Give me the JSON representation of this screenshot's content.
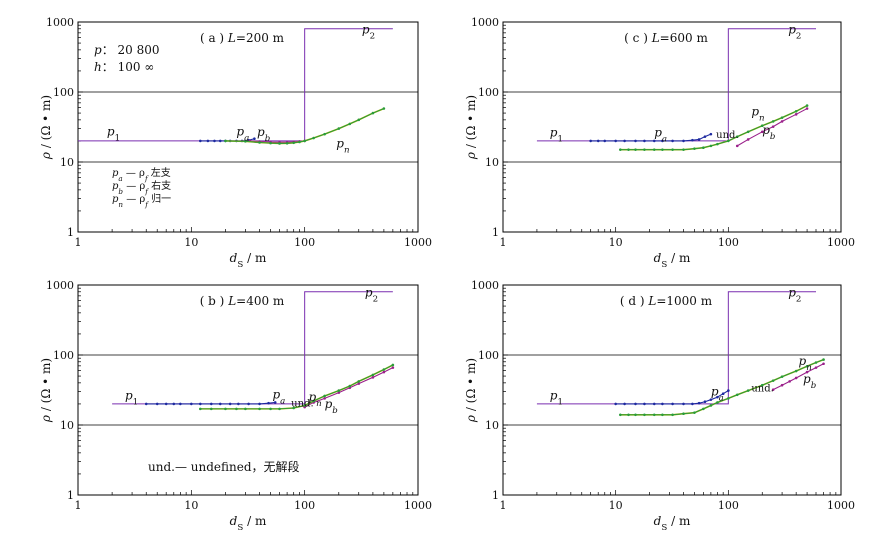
{
  "figure": {
    "und_note": "und.— undefined，无解段",
    "params": {
      "p_label": "p：",
      "p_values": "20  800",
      "h_label": "h：",
      "h_values": "100  ∞"
    },
    "legend": [
      {
        "sym": "p",
        "sub": "a",
        "text": "— ρ",
        "text_sub": "f",
        "suffix": "左支"
      },
      {
        "sym": "p",
        "sub": "b",
        "text": "— ρ",
        "text_sub": "f",
        "suffix": "右支"
      },
      {
        "sym": "p",
        "sub": "n",
        "text": "— ρ",
        "text_sub": "f",
        "suffix": "归一"
      }
    ]
  },
  "colors": {
    "model": "#7a2fb0",
    "pa": "#1e2aa0",
    "pb": "#9a1f8a",
    "pn_green": "#2a9d3a",
    "pn_yellow": "#c9b400",
    "grid": "#000000"
  },
  "chart_data": [
    {
      "type": "line",
      "panel": "(a)",
      "title": "( a ) L=200 m",
      "xlabel": "d_S / m",
      "ylabel": "ρ / (Ω • m)",
      "xlim": [
        1,
        1000
      ],
      "ylim": [
        1,
        1000
      ],
      "xscale": "log",
      "yscale": "log",
      "xticks": [
        "1",
        "10",
        "100",
        "1000"
      ],
      "yticks": [
        "1",
        "10",
        "100",
        "1000"
      ],
      "series": [
        {
          "name": "model",
          "x": [
            1,
            100,
            100,
            600
          ],
          "y": [
            20,
            20,
            800,
            800
          ]
        },
        {
          "name": "p_a",
          "x": [
            12,
            14,
            16,
            18,
            20,
            22,
            25,
            28,
            32,
            36
          ],
          "y": [
            20,
            20,
            20,
            20,
            20,
            20,
            20,
            20,
            20.5,
            21.5
          ]
        },
        {
          "name": "p_b",
          "x": [
            33,
            40,
            50,
            60,
            70,
            80,
            90,
            100
          ],
          "y": [
            20,
            19.6,
            19.3,
            19.2,
            19.2,
            19.4,
            19.7,
            20
          ]
        },
        {
          "name": "p_n",
          "x": [
            20,
            30,
            40,
            50,
            60,
            70,
            80,
            90,
            100,
            120,
            150,
            200,
            250,
            300,
            400,
            500
          ],
          "y": [
            20,
            19.7,
            19,
            18.6,
            18.4,
            18.5,
            18.8,
            19.3,
            20,
            22,
            25,
            30,
            35,
            40,
            50,
            58
          ]
        }
      ],
      "labels": [
        "p1",
        "pa",
        "pb",
        "pn",
        "p2"
      ]
    },
    {
      "type": "line",
      "panel": "(b)",
      "title": "( b ) L=400 m",
      "xlabel": "d_S / m",
      "ylabel": "ρ / (Ω • m)",
      "xlim": [
        1,
        1000
      ],
      "ylim": [
        1,
        1000
      ],
      "xscale": "log",
      "yscale": "log",
      "xticks": [
        "1",
        "10",
        "100",
        "1000"
      ],
      "yticks": [
        "1",
        "10",
        "100",
        "1000"
      ],
      "series": [
        {
          "name": "model",
          "x": [
            2,
            100,
            100,
            600
          ],
          "y": [
            20,
            20,
            800,
            800
          ]
        },
        {
          "name": "p_a",
          "x": [
            4,
            5,
            6,
            7,
            8,
            10,
            12,
            15,
            18,
            22,
            26,
            32,
            40,
            48,
            55
          ],
          "y": [
            20,
            20,
            20,
            20,
            20,
            20,
            20,
            20,
            20,
            20,
            20,
            20,
            20,
            20.5,
            21
          ]
        },
        {
          "name": "p_b",
          "x": [
            100,
            120,
            150,
            200,
            250,
            300,
            400,
            500,
            600
          ],
          "y": [
            18,
            21,
            24,
            29,
            34,
            39,
            48,
            57,
            66
          ]
        },
        {
          "name": "p_n",
          "x": [
            12,
            15,
            20,
            25,
            30,
            40,
            50,
            60,
            80,
            100,
            120,
            150,
            200,
            250,
            300,
            400,
            500,
            600
          ],
          "y": [
            17,
            17,
            17,
            17,
            17,
            17,
            17,
            17,
            17.5,
            19,
            22,
            26,
            31,
            36,
            42,
            52,
            62,
            72
          ]
        }
      ],
      "labels": [
        "p1",
        "pa",
        "und.",
        "pn",
        "pb",
        "p2"
      ]
    },
    {
      "type": "line",
      "panel": "(c)",
      "title": "( c ) L=600 m",
      "xlabel": "d_S / m",
      "ylabel": "ρ / (Ω • m)",
      "xlim": [
        1,
        1000
      ],
      "ylim": [
        1,
        1000
      ],
      "xscale": "log",
      "yscale": "log",
      "xticks": [
        "1",
        "10",
        "100",
        "1000"
      ],
      "yticks": [
        "1",
        "10",
        "100",
        "1000"
      ],
      "series": [
        {
          "name": "model",
          "x": [
            2,
            100,
            100,
            600
          ],
          "y": [
            20,
            20,
            800,
            800
          ]
        },
        {
          "name": "p_a",
          "x": [
            6,
            7,
            8,
            10,
            12,
            15,
            18,
            22,
            26,
            32,
            40,
            48,
            55,
            62,
            70
          ],
          "y": [
            20,
            20,
            20,
            20,
            20,
            20,
            20,
            20,
            20,
            20,
            20,
            20.5,
            21,
            23,
            25
          ]
        },
        {
          "name": "p_b",
          "x": [
            120,
            150,
            200,
            250,
            300,
            400,
            500
          ],
          "y": [
            17,
            21,
            27,
            32,
            38,
            48,
            58
          ]
        },
        {
          "name": "p_n",
          "x": [
            11,
            13,
            15,
            18,
            22,
            26,
            32,
            40,
            50,
            60,
            70,
            80,
            100,
            120,
            150,
            200,
            250,
            300,
            400,
            500
          ],
          "y": [
            15,
            15,
            15,
            15,
            15,
            15,
            15,
            15,
            15.5,
            16,
            17,
            18,
            20,
            23,
            27,
            33,
            38,
            43,
            53,
            64
          ]
        }
      ],
      "labels": [
        "p1",
        "pa",
        "und.",
        "pn",
        "pb",
        "p2"
      ]
    },
    {
      "type": "line",
      "panel": "(d)",
      "title": "( d ) L=1000 m",
      "xlabel": "d_S / m",
      "ylabel": "ρ / (Ω • m)",
      "xlim": [
        1,
        1000
      ],
      "ylim": [
        1,
        1000
      ],
      "xscale": "log",
      "yscale": "log",
      "xticks": [
        "1",
        "10",
        "100",
        "1000"
      ],
      "yticks": [
        "1",
        "10",
        "100",
        "1000"
      ],
      "series": [
        {
          "name": "model",
          "x": [
            2,
            100,
            100,
            600
          ],
          "y": [
            20,
            20,
            800,
            800
          ]
        },
        {
          "name": "p_a",
          "x": [
            10,
            12,
            15,
            18,
            22,
            26,
            32,
            40,
            48,
            55,
            62,
            70,
            80,
            90,
            100
          ],
          "y": [
            20,
            20,
            20,
            20,
            20,
            20,
            20,
            20,
            20,
            20.5,
            21.5,
            23,
            25,
            28,
            31
          ]
        },
        {
          "name": "p_b",
          "x": [
            250,
            300,
            350,
            400,
            500,
            600,
            700
          ],
          "y": [
            32,
            37,
            42,
            47,
            57,
            66,
            75
          ]
        },
        {
          "name": "p_n",
          "x": [
            11,
            13,
            15,
            18,
            22,
            26,
            32,
            40,
            50,
            60,
            70,
            80,
            100,
            120,
            150,
            200,
            250,
            300,
            400,
            500,
            600,
            700
          ],
          "y": [
            14,
            14,
            14,
            14,
            14,
            14,
            14,
            14.5,
            15,
            17,
            19,
            21,
            24,
            27,
            31,
            37,
            43,
            49,
            59,
            69,
            78,
            86
          ]
        }
      ],
      "labels": [
        "p1",
        "pa",
        "und.",
        "pn",
        "pb",
        "p2"
      ]
    }
  ]
}
